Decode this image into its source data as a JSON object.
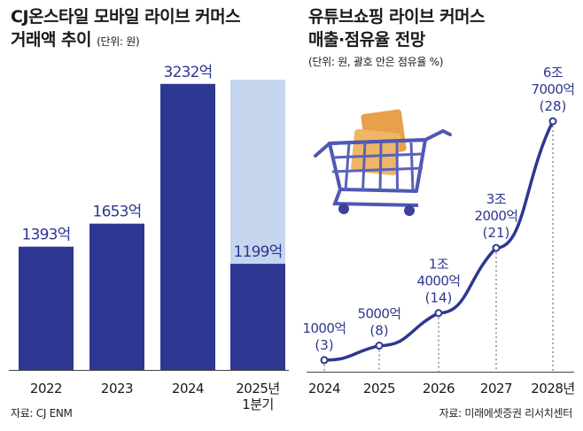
{
  "left": {
    "title_line1": "CJ온스타일 모바일 라이브 커머스",
    "title_line2": "거래액 추이",
    "unit": "(단위: 원)",
    "source": "자료: CJ ENM"
  },
  "right": {
    "title_line1": "유튜브쇼핑 라이브 커머스",
    "title_line2": "매출·점유율 전망",
    "unit": "(단위: 원, 괄호 안은 점유율 %)",
    "source": "자료: 미래에셋증권 리서치센터"
  },
  "colors": {
    "bar": "#2e3791",
    "bar_highlight_bg": "#c5d6ee",
    "line": "#2e3791",
    "label_text": "#2e3791"
  },
  "icons": {
    "illustration": "shopping-cart-icon"
  },
  "chart_data": [
    {
      "type": "bar",
      "categories": [
        "2022",
        "2023",
        "2024",
        "2025년 1분기"
      ],
      "values": [
        1393,
        1653,
        3232,
        1199
      ],
      "value_labels": [
        "1393억",
        "1653억",
        "3232억",
        "1199억"
      ],
      "highlight_index": 3,
      "ylim": [
        0,
        4200
      ],
      "grid": false
    },
    {
      "type": "line",
      "x": [
        "2024",
        "2025",
        "2026",
        "2027",
        "2028년"
      ],
      "values": [
        1000,
        5000,
        14000,
        32000,
        67000
      ],
      "shares": [
        3,
        8,
        14,
        21,
        28
      ],
      "value_labels": [
        [
          "1000억"
        ],
        [
          "5000억"
        ],
        [
          "1조",
          "4000억"
        ],
        [
          "3조",
          "2000억"
        ],
        [
          "6조",
          "7000억"
        ]
      ],
      "share_labels": [
        "(3)",
        "(8)",
        "(14)",
        "(21)",
        "(28)"
      ],
      "ylim": [
        0,
        70000
      ],
      "grid": false
    }
  ]
}
